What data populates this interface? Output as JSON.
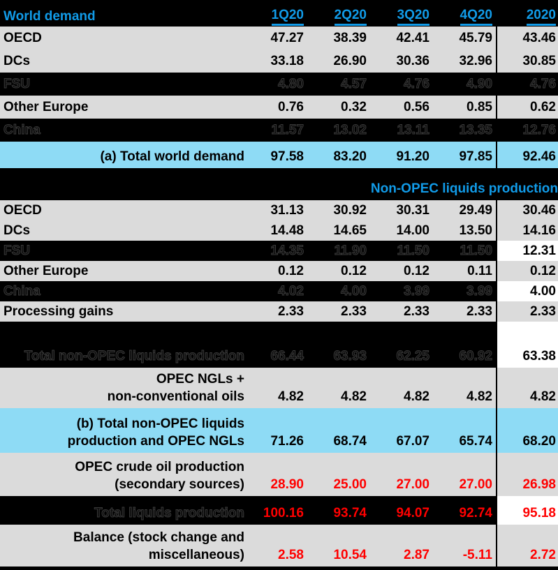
{
  "colors": {
    "background": "#000000",
    "accent_blue": "#119BE8",
    "row_gray": "#DBDBDB",
    "row_highlight_blue": "#8EDBF5",
    "value_red": "#FF0000",
    "hidden_row_text": "#3A3A3A",
    "white_cell": "#FFFFFF"
  },
  "table": {
    "header": {
      "label": "World demand",
      "columns": [
        "1Q20",
        "2Q20",
        "3Q20",
        "4Q20",
        "2020"
      ]
    },
    "rows": [
      {
        "name": "row-oecd-demand",
        "bg": "gray",
        "label_lines": [
          "OECD"
        ],
        "values": [
          "47.27",
          "38.39",
          "42.41",
          "45.79",
          "43.46"
        ]
      },
      {
        "name": "row-dcs-demand",
        "bg": "gray",
        "label_lines": [
          "DCs"
        ],
        "values": [
          "33.18",
          "26.90",
          "30.36",
          "32.96",
          "30.85"
        ]
      },
      {
        "name": "row-fsu-demand",
        "bg": "dark",
        "label_lines": [
          "FSU"
        ],
        "values": [
          "4.80",
          "4.57",
          "4.76",
          "4.90",
          "4.76"
        ]
      },
      {
        "name": "row-other-europe-demand",
        "bg": "gray",
        "label_lines": [
          "Other Europe"
        ],
        "values": [
          "0.76",
          "0.32",
          "0.56",
          "0.85",
          "0.62"
        ]
      },
      {
        "name": "row-china-demand",
        "bg": "dark",
        "label_lines": [
          "China"
        ],
        "values": [
          "11.57",
          "13.02",
          "13.11",
          "13.35",
          "12.76"
        ]
      },
      {
        "name": "row-total-world-demand",
        "bg": "blue",
        "label_lines": [
          "(a) Total world demand"
        ],
        "values": [
          "97.58",
          "83.20",
          "91.20",
          "97.85",
          "92.46"
        ]
      },
      {
        "name": "section-non-opec",
        "type": "section",
        "label_lines": [
          "Non-OPEC liquids production"
        ]
      },
      {
        "name": "row-oecd-production",
        "bg": "gray",
        "label_lines": [
          "OECD"
        ],
        "values": [
          "31.13",
          "30.92",
          "30.31",
          "29.49",
          "30.46"
        ]
      },
      {
        "name": "row-dcs-production",
        "bg": "gray",
        "label_lines": [
          "DCs"
        ],
        "values": [
          "14.48",
          "14.65",
          "14.00",
          "13.50",
          "14.16"
        ]
      },
      {
        "name": "row-fsu-production",
        "bg": "dark",
        "last_cell_white": true,
        "label_lines": [
          "FSU"
        ],
        "values": [
          "14.35",
          "11.90",
          "11.50",
          "11.50",
          "12.31"
        ]
      },
      {
        "name": "row-other-europe-production",
        "bg": "gray",
        "label_lines": [
          "Other Europe"
        ],
        "values": [
          "0.12",
          "0.12",
          "0.12",
          "0.11",
          "0.12"
        ]
      },
      {
        "name": "row-china-production",
        "bg": "dark",
        "last_cell_white": true,
        "label_lines": [
          "China"
        ],
        "values": [
          "4.02",
          "4.00",
          "3.99",
          "3.99",
          "4.00"
        ]
      },
      {
        "name": "row-processing-gains",
        "bg": "gray",
        "label_lines": [
          "Processing gains"
        ],
        "values": [
          "2.33",
          "2.33",
          "2.33",
          "2.33",
          "2.33"
        ]
      },
      {
        "name": "row-total-non-opec",
        "bg": "dark",
        "last_cell_white": true,
        "label_lines": [
          "Total non-OPEC liquids production"
        ],
        "values": [
          "66.44",
          "63.93",
          "62.25",
          "60.92",
          "63.38"
        ]
      },
      {
        "name": "row-opec-ngls",
        "bg": "gray",
        "label_lines": [
          "OPEC NGLs +",
          "non-conventional oils"
        ],
        "values": [
          "4.82",
          "4.82",
          "4.82",
          "4.82",
          "4.82"
        ]
      },
      {
        "name": "row-total-non-opec-and-ngls",
        "bg": "blue",
        "label_lines": [
          "(b) Total non-OPEC liquids",
          "production and OPEC NGLs"
        ],
        "values": [
          "71.26",
          "68.74",
          "67.07",
          "65.74",
          "68.20"
        ]
      },
      {
        "name": "row-opec-crude",
        "bg": "gray",
        "value_color": "red",
        "label_lines": [
          "OPEC crude oil production",
          "(secondary sources)"
        ],
        "values": [
          "28.90",
          "25.00",
          "27.00",
          "27.00",
          "26.98"
        ]
      },
      {
        "name": "row-total-liquids",
        "bg": "dark",
        "value_color": "red",
        "last_cell_white": true,
        "label_lines": [
          "Total liquids production"
        ],
        "values": [
          "100.16",
          "93.74",
          "94.07",
          "92.74",
          "95.18"
        ]
      },
      {
        "name": "row-balance",
        "bg": "gray",
        "value_color": "red",
        "label_lines": [
          "Balance (stock change and",
          "miscellaneous)"
        ],
        "values": [
          "2.58",
          "10.54",
          "2.87",
          "-5.11",
          "2.72"
        ]
      }
    ]
  }
}
